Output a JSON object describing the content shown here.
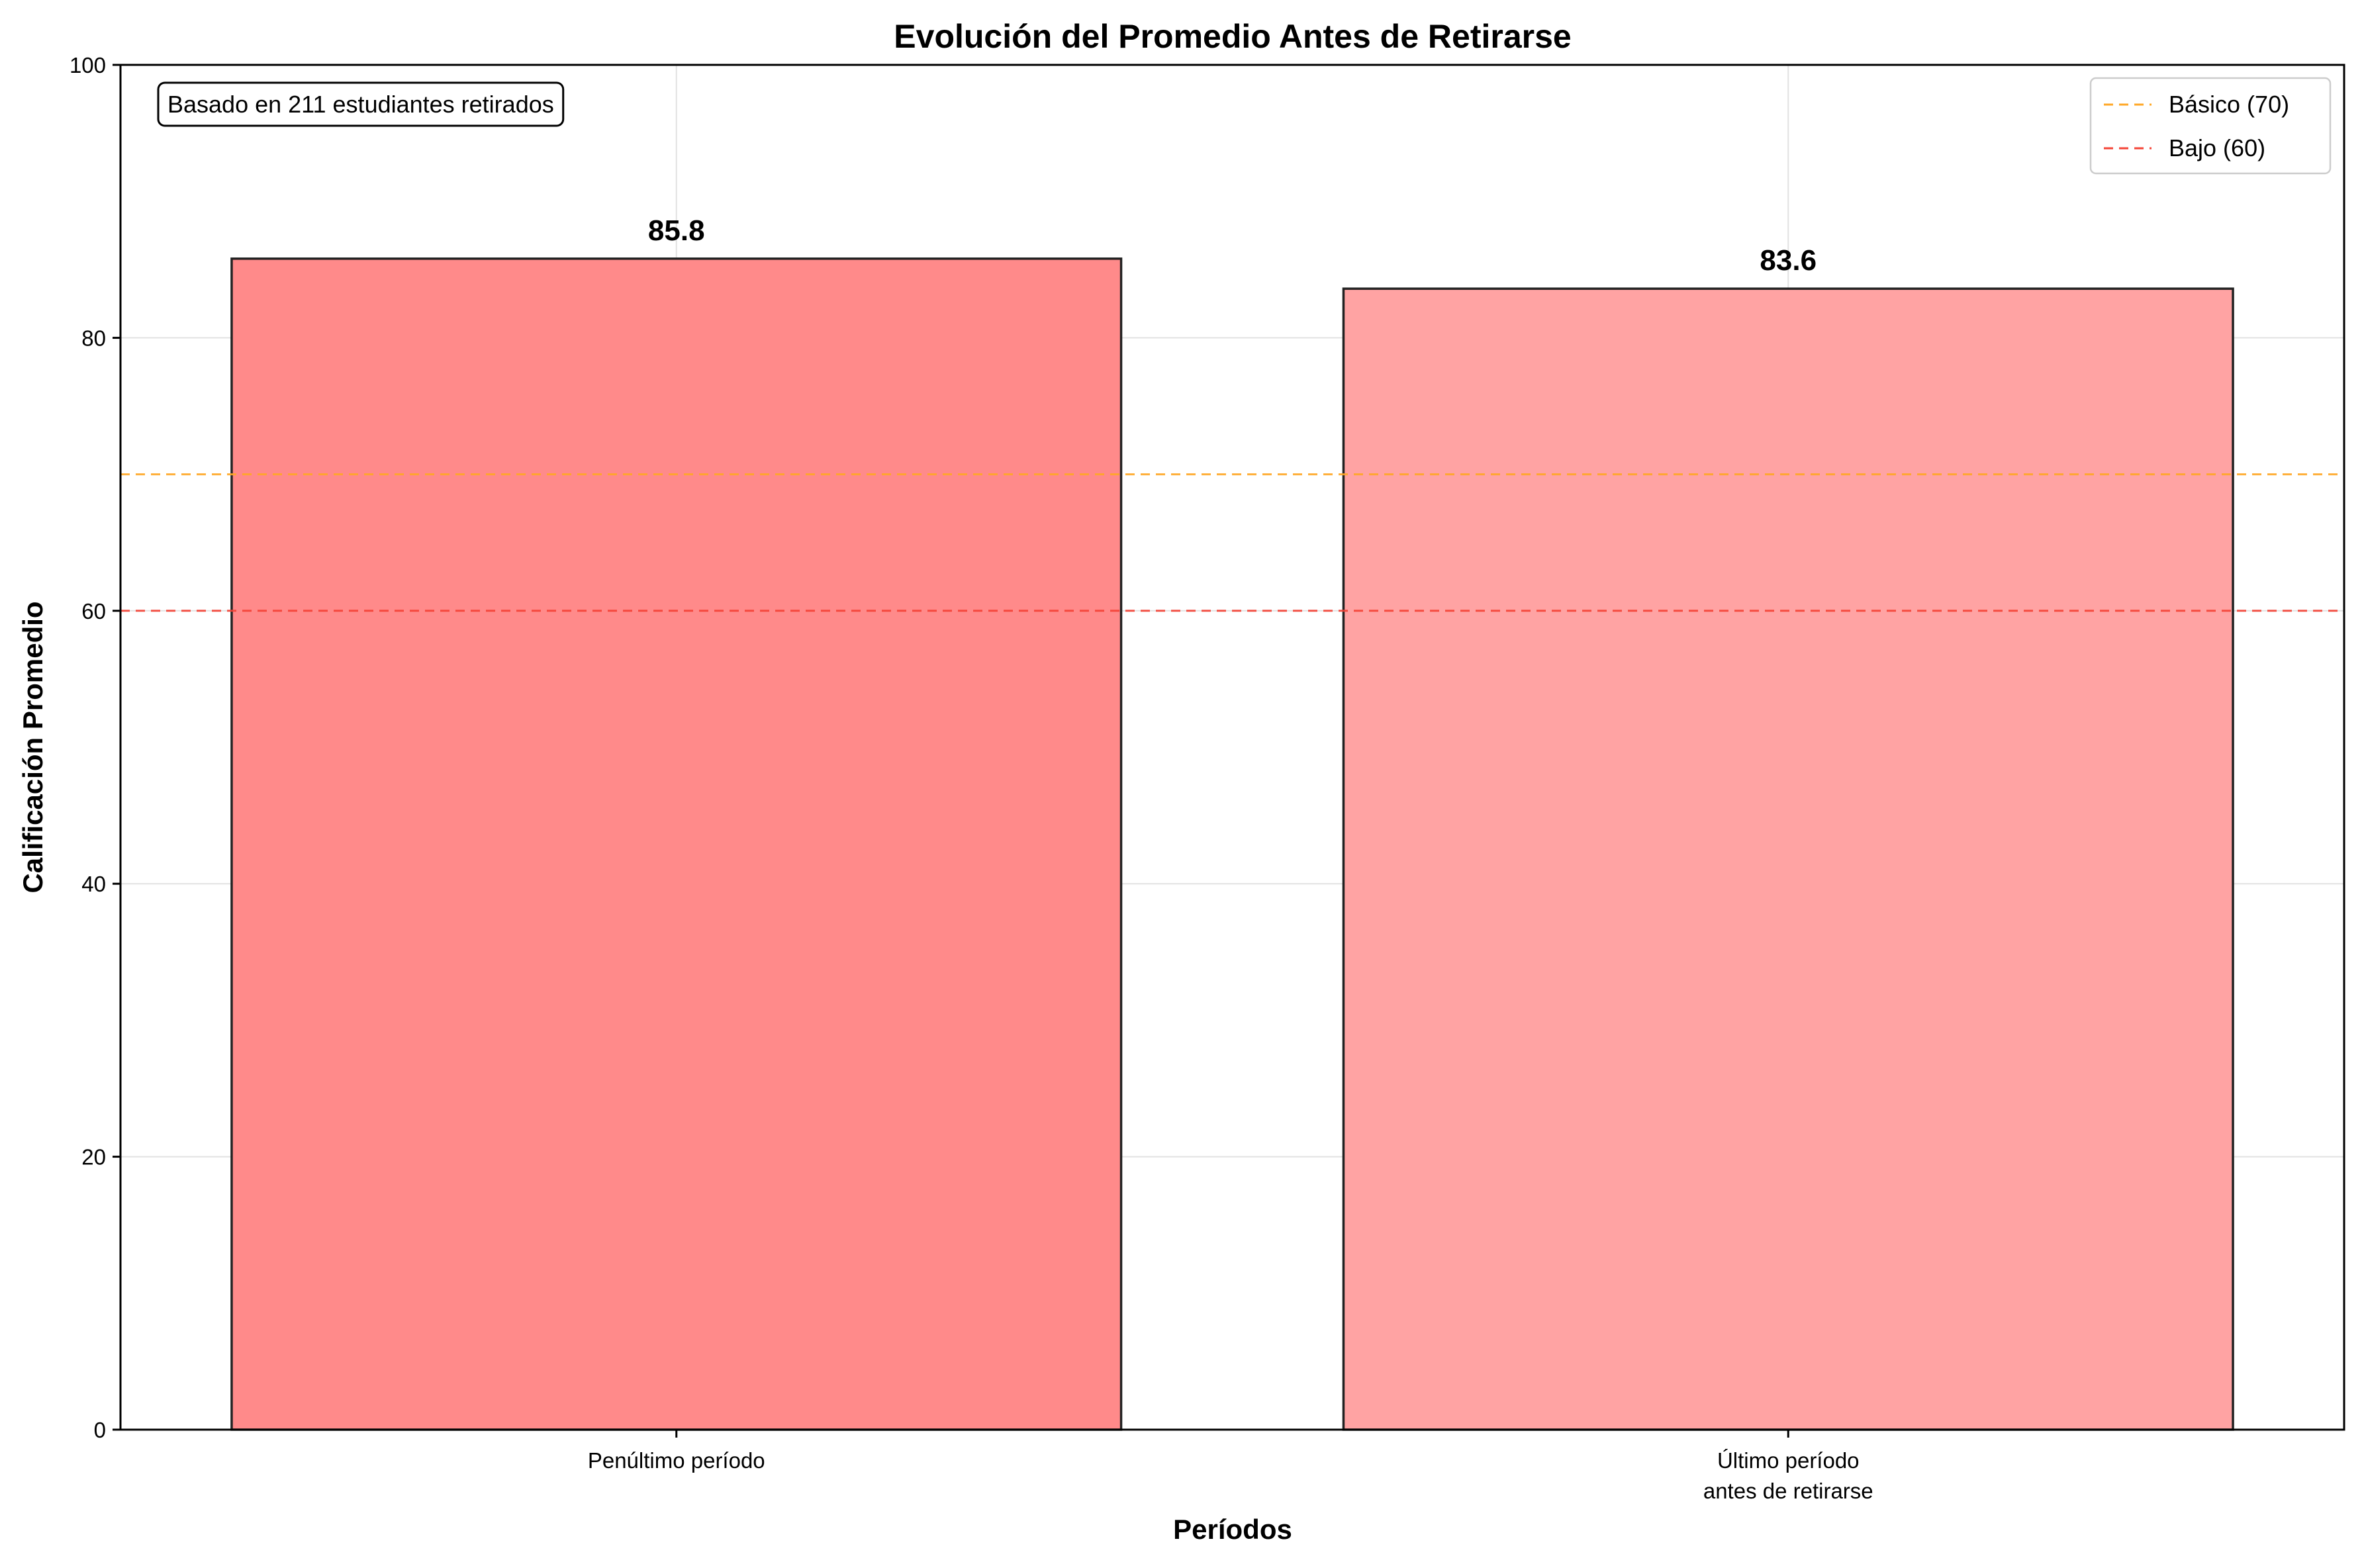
{
  "chart_data": {
    "type": "bar",
    "title": "Evolución del Promedio Antes de Retirarse",
    "xlabel": "Períodos",
    "ylabel": "Calificación Promedio",
    "categories": [
      [
        "Penúltimo período"
      ],
      [
        "Último período",
        "antes de retirarse"
      ]
    ],
    "values": [
      85.8,
      83.6
    ],
    "value_labels": [
      "85.8",
      "83.6"
    ],
    "bar_colors": [
      "#ff8a8a",
      "#ffa3a3"
    ],
    "ylim": [
      0,
      100
    ],
    "yticks": [
      0,
      20,
      40,
      60,
      80,
      100
    ],
    "grid": true,
    "annotation": "Basado en 211 estudiantes retirados",
    "reference_lines": [
      {
        "label": "Básico (70)",
        "value": 70,
        "color": "#ffa726"
      },
      {
        "label": "Bajo (60)",
        "value": 60,
        "color": "#f44336"
      }
    ],
    "legend_position": "top-right"
  }
}
